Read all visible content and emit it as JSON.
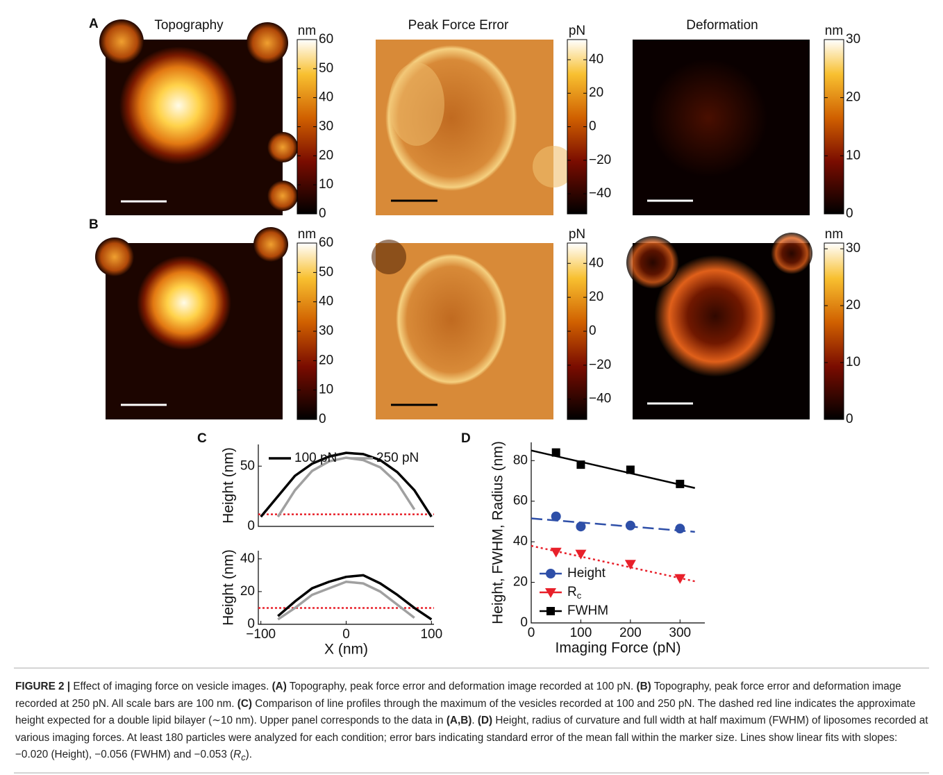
{
  "panel_labels": [
    "A",
    "B",
    "C",
    "D"
  ],
  "image_titles": [
    "Topography",
    "Peak Force Error",
    "Deformation"
  ],
  "colorbars": [
    {
      "unit": "nm",
      "lim": [
        0,
        60
      ],
      "ticks": [
        0,
        10,
        20,
        30,
        40,
        50,
        60
      ]
    },
    {
      "unit": "pN",
      "lim": [
        -52,
        52
      ],
      "ticks": [
        {
          "value": -40,
          "label": "−40"
        },
        {
          "value": -20,
          "label": "−20"
        },
        0,
        20,
        40
      ]
    },
    {
      "unit": "nm",
      "lim": [
        0,
        30
      ],
      "ticks": [
        0,
        10,
        20,
        30
      ]
    },
    {
      "unit": "nm",
      "lim": [
        0,
        60
      ],
      "ticks": [
        0,
        10,
        20,
        30,
        40,
        50,
        60
      ]
    },
    {
      "unit": "pN",
      "lim": [
        -52,
        52
      ],
      "ticks": [
        {
          "value": -40,
          "label": "−40"
        },
        {
          "value": -20,
          "label": "−20"
        },
        0,
        20,
        40
      ]
    },
    {
      "unit": "nm",
      "lim": [
        0,
        31
      ],
      "ticks": [
        0,
        10,
        20,
        30
      ]
    }
  ],
  "chart_data": [
    {
      "type": "line",
      "ylabel": "Height (nm)",
      "xlim": [
        -103,
        103
      ],
      "ylim": [
        0,
        68
      ],
      "yticks": [
        0,
        50
      ],
      "x": [
        -100,
        -80,
        -60,
        -40,
        -20,
        0,
        20,
        40,
        60,
        80,
        100
      ],
      "series": [
        {
          "name": "100 pN",
          "color": "#000000",
          "values": [
            8,
            25,
            42,
            52,
            58,
            61,
            60,
            55,
            45,
            30,
            8
          ]
        },
        {
          "name": "250 pN",
          "color": "#a0a0a0",
          "values": [
            null,
            8,
            30,
            46,
            54,
            57,
            55,
            49,
            36,
            14,
            null
          ]
        }
      ],
      "reference_line": {
        "y": 10,
        "color": "#e8202a"
      },
      "legend": "upper center"
    },
    {
      "type": "line",
      "xlabel": "X (nm)",
      "ylabel": "Height (nm)",
      "xlim": [
        -103,
        103
      ],
      "ylim": [
        0,
        45
      ],
      "yticks": [
        0,
        20,
        40
      ],
      "xticks": [
        {
          "value": -100,
          "label": "−100"
        },
        0,
        100
      ],
      "x": [
        -100,
        -80,
        -60,
        -40,
        -20,
        0,
        20,
        40,
        60,
        80,
        100
      ],
      "series": [
        {
          "color": "#000000",
          "values": [
            null,
            5,
            14,
            22,
            26,
            29,
            30,
            25,
            18,
            10,
            3
          ]
        },
        {
          "color": "#a0a0a0",
          "values": [
            null,
            3,
            10,
            18,
            22,
            26,
            25,
            20,
            12,
            4,
            null
          ]
        }
      ],
      "reference_line": {
        "y": 10,
        "color": "#e8202a"
      }
    },
    {
      "type": "scatter",
      "xlabel": "Imaging Force (pN)",
      "ylabel": "Height, FWHM, Radius (nm)",
      "xlim": [
        0,
        350
      ],
      "ylim": [
        0,
        89
      ],
      "xticks": [
        0,
        100,
        200,
        300
      ],
      "yticks": [
        0,
        20,
        40,
        60,
        80
      ],
      "x": [
        50,
        100,
        200,
        300
      ],
      "series": [
        {
          "name": "Height",
          "color": "#2e4fa8",
          "marker": "circle",
          "dash": "dashed",
          "values": [
            52.5,
            47.5,
            48,
            46.5
          ],
          "fit": {
            "x": [
              0,
              330
            ],
            "values": [
              51.5,
              44.9
            ]
          }
        },
        {
          "name": "R",
          "name_subscript": "c",
          "color": "#e8202a",
          "marker": "triangle-down",
          "dash": "dotted",
          "values": [
            35,
            34,
            29,
            22
          ],
          "fit": {
            "x": [
              0,
              330
            ],
            "values": [
              38,
              20.5
            ]
          }
        },
        {
          "name": "FWHM",
          "color": "#000000",
          "marker": "square",
          "dash": "solid",
          "values": [
            84,
            78,
            75.5,
            68.5
          ],
          "fit": {
            "x": [
              0,
              330
            ],
            "values": [
              85,
              66.5
            ]
          }
        }
      ],
      "legend": "lower left"
    }
  ],
  "caption": [
    "FIGURE 2 |",
    " Effect of imaging force on vesicle images. ",
    "(A)",
    " Topography, peak force error and deformation image recorded at 100 pN. ",
    "(B)",
    " Topography, peak force error and deformation image recorded at 250 pN. All scale bars are 100 nm. ",
    "(C)",
    " Comparison of line profiles through the maximum of the vesicles recorded at 100 and 250 pN. The dashed red line indicates the approximate height expected for a double lipid bilayer (∼10 nm). Upper panel corresponds to the data in ",
    "(A,B)",
    ". ",
    "(D)",
    " Height, radius of curvature and full width at half maximum (FWHM) of liposomes recorded at various imaging forces. At least 180 particles were analyzed for each condition; error bars indicating standard error of the mean fall within the marker size. Lines show linear fits with slopes: −0.020 (Height), −0.056 (FWHM) and −0.053 (",
    "R",
    "c",
    ")."
  ]
}
